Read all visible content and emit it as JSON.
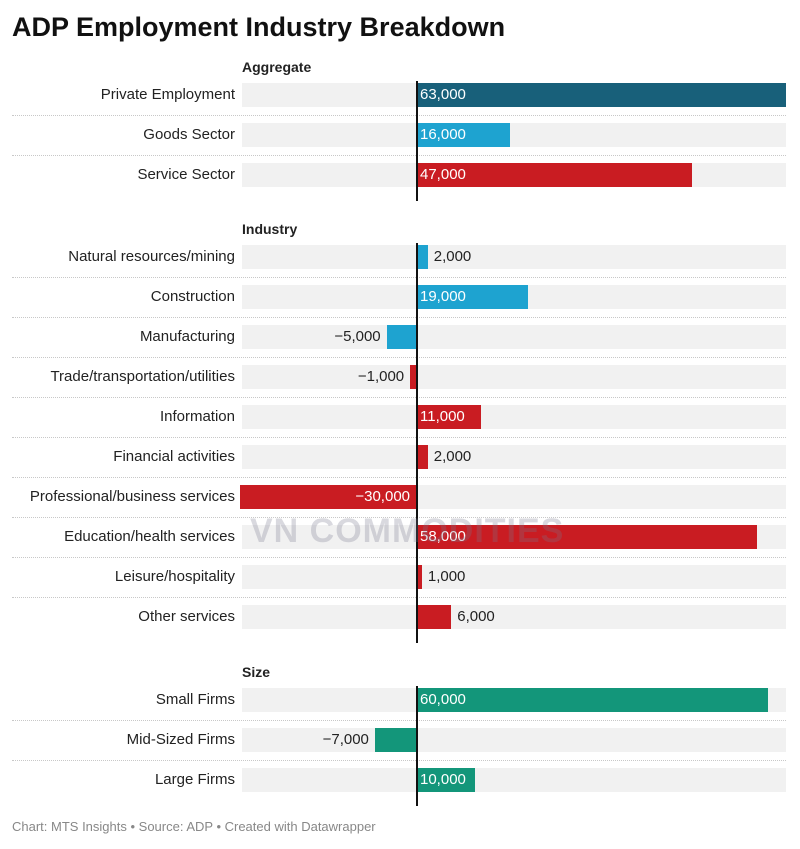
{
  "chart_data": {
    "type": "bar",
    "orientation": "horizontal",
    "title": "ADP Employment Industry Breakdown",
    "xlim": [
      -30000,
      63000
    ],
    "groups": [
      {
        "name": "Aggregate",
        "rows": [
          {
            "label": "Private Employment",
            "value": 63000,
            "display": "63,000",
            "color": "#18607a"
          },
          {
            "label": "Goods Sector",
            "value": 16000,
            "display": "16,000",
            "color": "#1ea3d0"
          },
          {
            "label": "Service Sector",
            "value": 47000,
            "display": "47,000",
            "color": "#c91c22"
          }
        ]
      },
      {
        "name": "Industry",
        "rows": [
          {
            "label": "Natural resources/mining",
            "value": 2000,
            "display": "2,000",
            "color": "#1ea3d0"
          },
          {
            "label": "Construction",
            "value": 19000,
            "display": "19,000",
            "color": "#1ea3d0"
          },
          {
            "label": "Manufacturing",
            "value": -5000,
            "display": "−5,000",
            "color": "#1ea3d0"
          },
          {
            "label": "Trade/transportation/utilities",
            "value": -1000,
            "display": "−1,000",
            "color": "#c91c22"
          },
          {
            "label": "Information",
            "value": 11000,
            "display": "11,000",
            "color": "#c91c22"
          },
          {
            "label": "Financial activities",
            "value": 2000,
            "display": "2,000",
            "color": "#c91c22"
          },
          {
            "label": "Professional/business services",
            "value": -30000,
            "display": "−30,000",
            "color": "#c91c22"
          },
          {
            "label": "Education/health services",
            "value": 58000,
            "display": "58,000",
            "color": "#c91c22"
          },
          {
            "label": "Leisure/hospitality",
            "value": 1000,
            "display": "1,000",
            "color": "#c91c22"
          },
          {
            "label": "Other services",
            "value": 6000,
            "display": "6,000",
            "color": "#c91c22"
          }
        ]
      },
      {
        "name": "Size",
        "rows": [
          {
            "label": "Small Firms",
            "value": 60000,
            "display": "60,000",
            "color": "#13967a"
          },
          {
            "label": "Mid-Sized Firms",
            "value": -7000,
            "display": "−7,000",
            "color": "#13967a"
          },
          {
            "label": "Large Firms",
            "value": 10000,
            "display": "10,000",
            "color": "#13967a"
          }
        ]
      }
    ]
  },
  "footer": "Chart: MTS Insights • Source: ADP • Created with Datawrapper",
  "watermark": "VN COMMODITIES"
}
